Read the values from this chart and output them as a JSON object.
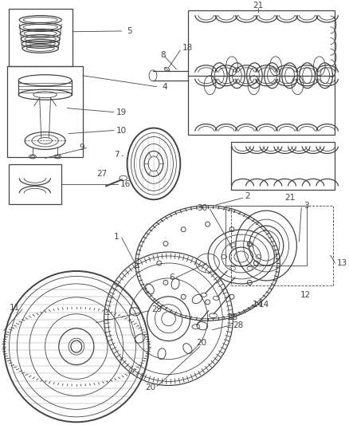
{
  "bg_color": "#ffffff",
  "line_color": "#444444",
  "label_color": "#555555",
  "figsize": [
    4.38,
    5.33
  ],
  "dpi": 100,
  "lw_thin": 0.6,
  "lw_med": 0.9,
  "lw_thick": 1.4,
  "label_fs": 7.5
}
